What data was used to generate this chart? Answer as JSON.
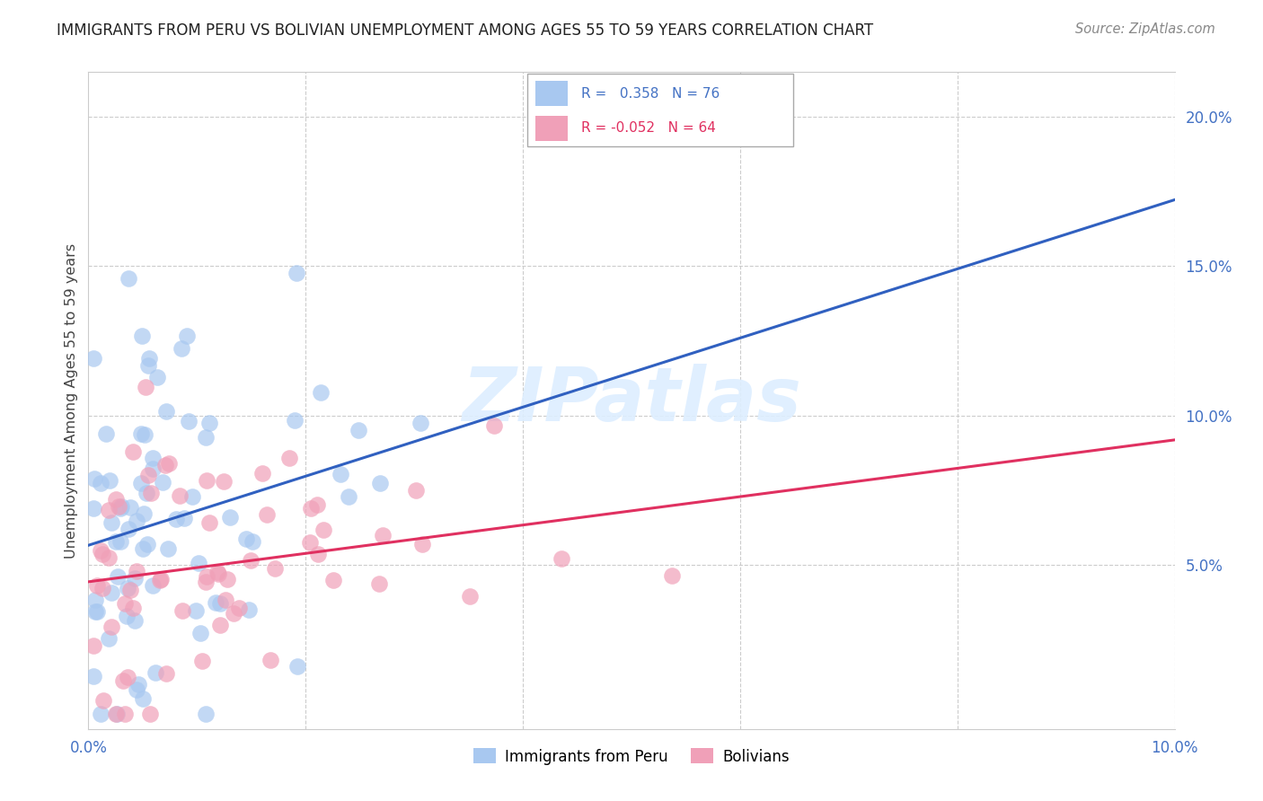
{
  "title": "IMMIGRANTS FROM PERU VS BOLIVIAN UNEMPLOYMENT AMONG AGES 55 TO 59 YEARS CORRELATION CHART",
  "source": "Source: ZipAtlas.com",
  "ylabel": "Unemployment Among Ages 55 to 59 years",
  "xlim": [
    0.0,
    0.1
  ],
  "ylim": [
    -0.005,
    0.215
  ],
  "y_ticks_right": [
    0.05,
    0.1,
    0.15,
    0.2
  ],
  "y_tick_labels_right": [
    "5.0%",
    "10.0%",
    "15.0%",
    "20.0%"
  ],
  "color_peru": "#a8c8f0",
  "color_bolivia": "#f0a0b8",
  "trend_color_peru": "#3060c0",
  "trend_color_bolivia": "#e03060",
  "watermark": "ZIPatlas",
  "peru_R": 0.358,
  "peru_N": 76,
  "bolivia_R": -0.052,
  "bolivia_N": 64,
  "legend1_text": "R =   0.358   N = 76",
  "legend2_text": "R = -0.052   N = 64",
  "legend_bottom_peru": "Immigrants from Peru",
  "legend_bottom_bolivia": "Bolivians",
  "grid_color": "#cccccc",
  "title_color": "#222222",
  "source_color": "#888888",
  "ylabel_color": "#444444",
  "right_tick_color": "#4472c4"
}
